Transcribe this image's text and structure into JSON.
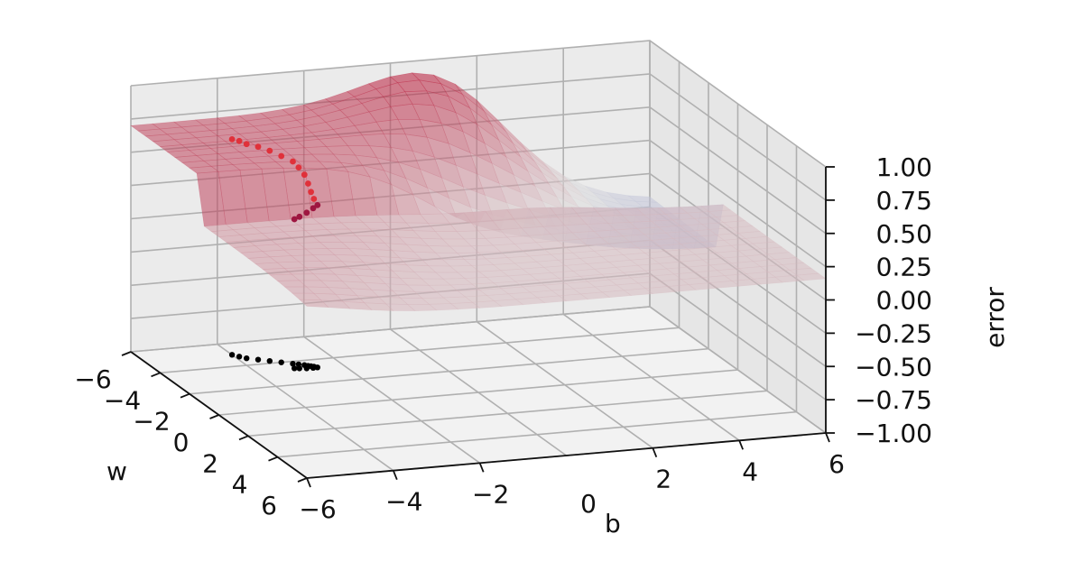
{
  "chart_data": {
    "type": "surface3d",
    "title": "",
    "xlabel": "b",
    "ylabel": "w",
    "zlabel": "error",
    "xlim": [
      -6,
      6
    ],
    "ylim": [
      -6,
      6
    ],
    "zlim": [
      -1,
      1
    ],
    "x_ticks": [
      "−6",
      "−4",
      "−2",
      "0",
      "2",
      "4",
      "6"
    ],
    "y_ticks": [
      "−6",
      "−4",
      "−2",
      "0",
      "2",
      "4",
      "6"
    ],
    "z_ticks": [
      "−1.00",
      "−0.75",
      "−0.50",
      "−0.25",
      "0.00",
      "0.25",
      "0.50",
      "0.75",
      "1.00"
    ],
    "x_tick_values": [
      -6,
      -4,
      -2,
      0,
      2,
      4,
      6
    ],
    "y_tick_values": [
      -6,
      -4,
      -2,
      0,
      2,
      4,
      6
    ],
    "z_tick_values": [
      -1,
      -0.75,
      -0.5,
      -0.25,
      0,
      0.25,
      0.5,
      0.75,
      1
    ],
    "grid": true,
    "colormap": "coolwarm",
    "colors": {
      "pane": "#f2f2f2",
      "grid": "#b0b0b0",
      "surface_low": "#3b4cc0",
      "surface_mid": "#dddddd",
      "surface_high": "#b40426",
      "path": "#e0313a",
      "path_end": "#9e1640",
      "shadow": "#000000"
    },
    "series": [
      {
        "kind": "descent-path",
        "points": [
          {
            "w": -5.0,
            "b": -4.0,
            "error": 0.62
          },
          {
            "w": -4.8,
            "b": -3.9,
            "error": 0.62
          },
          {
            "w": -4.6,
            "b": -3.8,
            "error": 0.61
          },
          {
            "w": -4.4,
            "b": -3.6,
            "error": 0.6
          },
          {
            "w": -4.2,
            "b": -3.4,
            "error": 0.58
          },
          {
            "w": -4.0,
            "b": -3.2,
            "error": 0.55
          },
          {
            "w": -3.8,
            "b": -3.0,
            "error": 0.52
          },
          {
            "w": -3.7,
            "b": -2.9,
            "error": 0.48
          },
          {
            "w": -3.6,
            "b": -2.8,
            "error": 0.43
          },
          {
            "w": -3.5,
            "b": -2.75,
            "error": 0.37
          },
          {
            "w": -3.45,
            "b": -2.7,
            "error": 0.31
          },
          {
            "w": -3.4,
            "b": -2.65,
            "error": 0.26
          },
          {
            "w": -3.3,
            "b": -2.6,
            "error": 0.22
          },
          {
            "w": -3.3,
            "b": -2.7,
            "error": 0.2
          },
          {
            "w": -3.3,
            "b": -2.85,
            "error": 0.17
          },
          {
            "w": -3.35,
            "b": -3.0,
            "error": 0.14
          },
          {
            "w": -3.4,
            "b": -3.1,
            "error": 0.12
          }
        ]
      }
    ]
  }
}
